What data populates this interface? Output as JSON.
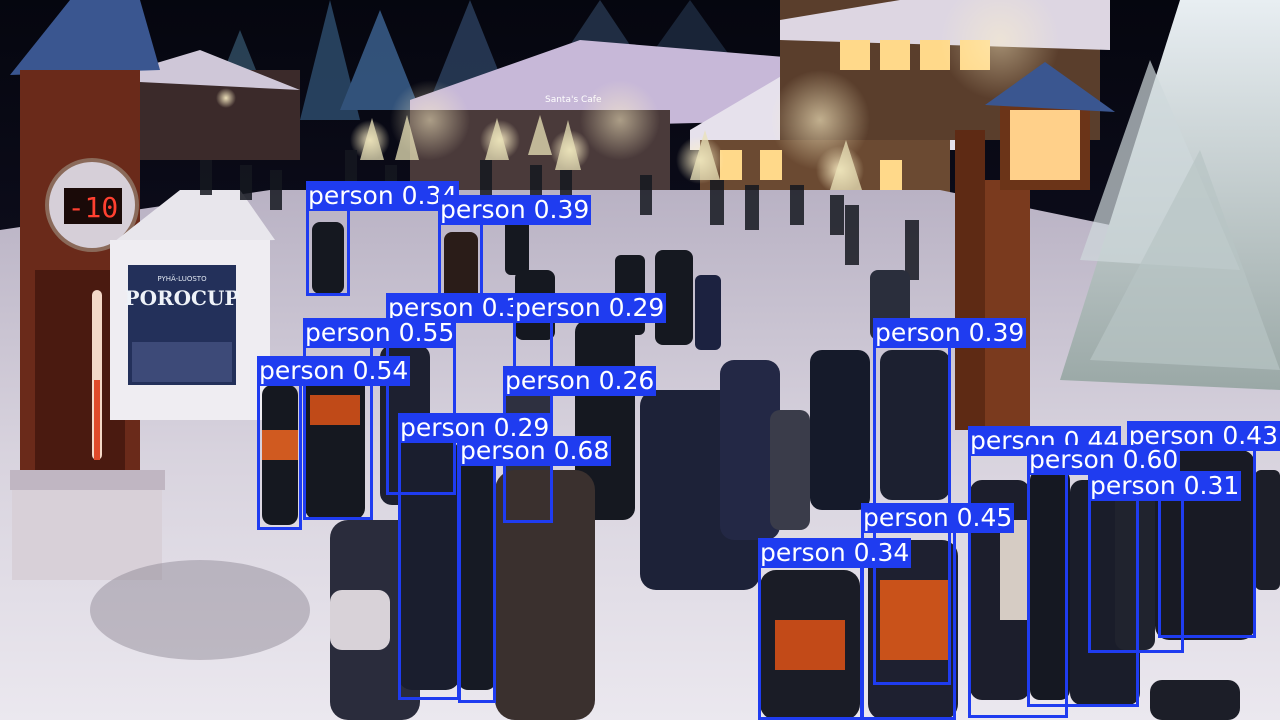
{
  "scene": {
    "sign": {
      "brand": "PYHÄ-LUOSTO",
      "title": "POROCUP"
    },
    "thermometer": {
      "reading": "-10"
    },
    "building_sign": "Santa's Cafe"
  },
  "detection": {
    "color": "#1f3cf0",
    "label_color": "#ffffff",
    "boxes": [
      {
        "label": "person",
        "score": "0.34"
      },
      {
        "label": "person",
        "score": "0.39"
      },
      {
        "label": "person",
        "score": "0.39"
      },
      {
        "label": "person",
        "score": "0.29"
      },
      {
        "label": "person",
        "score": "0.55"
      },
      {
        "label": "person",
        "score": "0.54"
      },
      {
        "label": "person",
        "score": "0.26"
      },
      {
        "label": "person",
        "score": "0.29"
      },
      {
        "label": "person",
        "score": "0.68"
      },
      {
        "label": "person",
        "score": "0.39"
      },
      {
        "label": "person",
        "score": "0.44"
      },
      {
        "label": "person",
        "score": "0.43"
      },
      {
        "label": "person",
        "score": "0.60"
      },
      {
        "label": "person",
        "score": "0.31"
      },
      {
        "label": "person",
        "score": "0.45"
      },
      {
        "label": "person",
        "score": "0.34"
      }
    ]
  }
}
